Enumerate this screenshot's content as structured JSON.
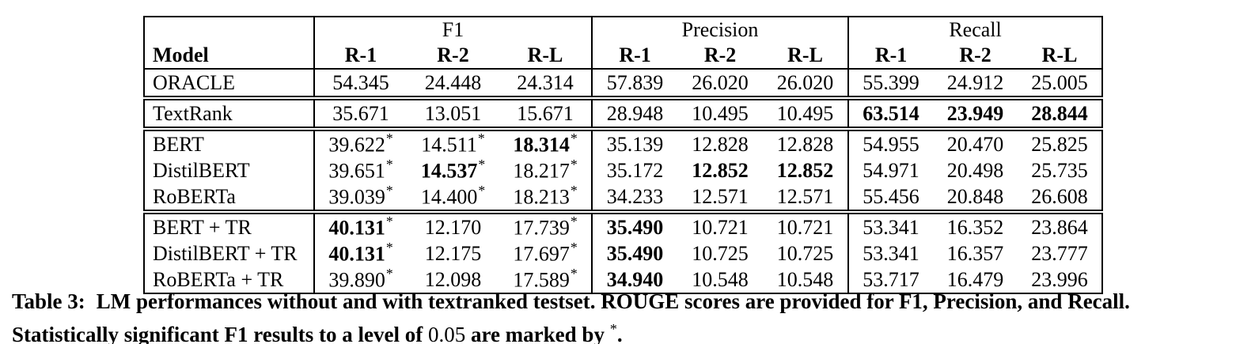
{
  "colors": {
    "text": "#000000",
    "background": "#ffffff",
    "border": "#000000"
  },
  "table": {
    "star_symbol": "*",
    "header": {
      "model_label": "Model",
      "groups": [
        {
          "label": "F1"
        },
        {
          "label": "Precision"
        },
        {
          "label": "Recall"
        }
      ],
      "metric_labels": [
        "R-1",
        "R-2",
        "R-L"
      ]
    },
    "sections": [
      {
        "rows": [
          {
            "model": "ORACLE",
            "cells": [
              {
                "text": "54.345",
                "bold": false,
                "star": false
              },
              {
                "text": "24.448",
                "bold": false,
                "star": false
              },
              {
                "text": "24.314",
                "bold": false,
                "star": false
              },
              {
                "text": "57.839",
                "bold": false,
                "star": false
              },
              {
                "text": "26.020",
                "bold": false,
                "star": false
              },
              {
                "text": "26.020",
                "bold": false,
                "star": false
              },
              {
                "text": "55.399",
                "bold": false,
                "star": false
              },
              {
                "text": "24.912",
                "bold": false,
                "star": false
              },
              {
                "text": "25.005",
                "bold": false,
                "star": false
              }
            ]
          }
        ]
      },
      {
        "rows": [
          {
            "model": "TextRank",
            "cells": [
              {
                "text": "35.671",
                "bold": false,
                "star": false
              },
              {
                "text": "13.051",
                "bold": false,
                "star": false
              },
              {
                "text": "15.671",
                "bold": false,
                "star": false
              },
              {
                "text": "28.948",
                "bold": false,
                "star": false
              },
              {
                "text": "10.495",
                "bold": false,
                "star": false
              },
              {
                "text": "10.495",
                "bold": false,
                "star": false
              },
              {
                "text": "63.514",
                "bold": true,
                "star": false
              },
              {
                "text": "23.949",
                "bold": true,
                "star": false
              },
              {
                "text": "28.844",
                "bold": true,
                "star": false
              }
            ]
          }
        ]
      },
      {
        "rows": [
          {
            "model": "BERT",
            "cells": [
              {
                "text": "39.622",
                "bold": false,
                "star": true
              },
              {
                "text": "14.511",
                "bold": false,
                "star": true
              },
              {
                "text": "18.314",
                "bold": true,
                "star": true
              },
              {
                "text": "35.139",
                "bold": false,
                "star": false
              },
              {
                "text": "12.828",
                "bold": false,
                "star": false
              },
              {
                "text": "12.828",
                "bold": false,
                "star": false
              },
              {
                "text": "54.955",
                "bold": false,
                "star": false
              },
              {
                "text": "20.470",
                "bold": false,
                "star": false
              },
              {
                "text": "25.825",
                "bold": false,
                "star": false
              }
            ]
          },
          {
            "model": "DistilBERT",
            "cells": [
              {
                "text": "39.651",
                "bold": false,
                "star": true
              },
              {
                "text": "14.537",
                "bold": true,
                "star": true
              },
              {
                "text": "18.217",
                "bold": false,
                "star": true
              },
              {
                "text": "35.172",
                "bold": false,
                "star": false
              },
              {
                "text": "12.852",
                "bold": true,
                "star": false
              },
              {
                "text": "12.852",
                "bold": true,
                "star": false
              },
              {
                "text": "54.971",
                "bold": false,
                "star": false
              },
              {
                "text": "20.498",
                "bold": false,
                "star": false
              },
              {
                "text": "25.735",
                "bold": false,
                "star": false
              }
            ]
          },
          {
            "model": "RoBERTa",
            "cells": [
              {
                "text": "39.039",
                "bold": false,
                "star": true
              },
              {
                "text": "14.400",
                "bold": false,
                "star": true
              },
              {
                "text": "18.213",
                "bold": false,
                "star": true
              },
              {
                "text": "34.233",
                "bold": false,
                "star": false
              },
              {
                "text": "12.571",
                "bold": false,
                "star": false
              },
              {
                "text": "12.571",
                "bold": false,
                "star": false
              },
              {
                "text": "55.456",
                "bold": false,
                "star": false
              },
              {
                "text": "20.848",
                "bold": false,
                "star": false
              },
              {
                "text": "26.608",
                "bold": false,
                "star": false
              }
            ]
          }
        ]
      },
      {
        "rows": [
          {
            "model": "BERT + TR",
            "cells": [
              {
                "text": "40.131",
                "bold": true,
                "star": true
              },
              {
                "text": "12.170",
                "bold": false,
                "star": false
              },
              {
                "text": "17.739",
                "bold": false,
                "star": true
              },
              {
                "text": "35.490",
                "bold": true,
                "star": false
              },
              {
                "text": "10.721",
                "bold": false,
                "star": false
              },
              {
                "text": "10.721",
                "bold": false,
                "star": false
              },
              {
                "text": "53.341",
                "bold": false,
                "star": false
              },
              {
                "text": "16.352",
                "bold": false,
                "star": false
              },
              {
                "text": "23.864",
                "bold": false,
                "star": false
              }
            ]
          },
          {
            "model": "DistilBERT + TR",
            "cells": [
              {
                "text": "40.131",
                "bold": true,
                "star": true
              },
              {
                "text": "12.175",
                "bold": false,
                "star": false
              },
              {
                "text": "17.697",
                "bold": false,
                "star": true
              },
              {
                "text": "35.490",
                "bold": true,
                "star": false
              },
              {
                "text": "10.725",
                "bold": false,
                "star": false
              },
              {
                "text": "10.725",
                "bold": false,
                "star": false
              },
              {
                "text": "53.341",
                "bold": false,
                "star": false
              },
              {
                "text": "16.357",
                "bold": false,
                "star": false
              },
              {
                "text": "23.777",
                "bold": false,
                "star": false
              }
            ]
          },
          {
            "model": "RoBERTa + TR",
            "cells": [
              {
                "text": "39.890",
                "bold": false,
                "star": true
              },
              {
                "text": "12.098",
                "bold": false,
                "star": false
              },
              {
                "text": "17.589",
                "bold": false,
                "star": true
              },
              {
                "text": "34.940",
                "bold": true,
                "star": false
              },
              {
                "text": "10.548",
                "bold": false,
                "star": false
              },
              {
                "text": "10.548",
                "bold": false,
                "star": false
              },
              {
                "text": "53.717",
                "bold": false,
                "star": false
              },
              {
                "text": "16.479",
                "bold": false,
                "star": false
              },
              {
                "text": "23.996",
                "bold": false,
                "star": false
              }
            ]
          }
        ]
      }
    ]
  },
  "caption": {
    "label": "Table 3:",
    "line1": "LM performances without and with textranked testset. ROUGE scores are provided for F1, Precision, and Recall.",
    "line2_pre": "Statistically significant F1 results to a level of ",
    "significance_level": "0.05",
    "line2_mid": " are marked by ",
    "star_symbol": "*",
    "period": "."
  }
}
